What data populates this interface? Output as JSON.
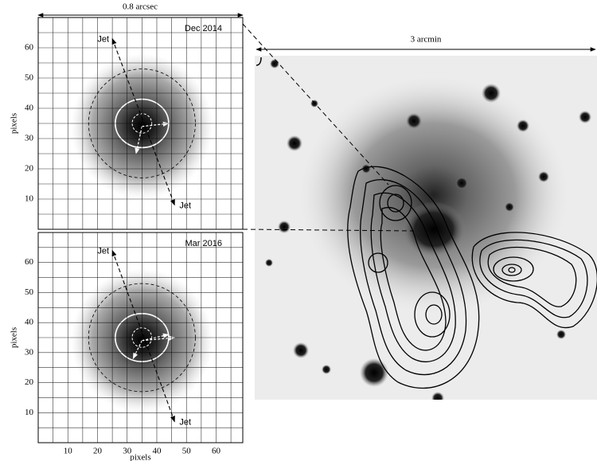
{
  "figure": {
    "left_scale": "0.8 arcsec",
    "right_scale": "3 arcmin"
  },
  "chart_data": [
    {
      "type": "image",
      "epoch": "Dec 2014",
      "ylabel": "pixels",
      "jet_labels": [
        "Jet",
        "Jet"
      ],
      "xlim": [
        0,
        69
      ],
      "ylim": [
        0,
        70
      ],
      "yticks": [
        10,
        20,
        30,
        40,
        50,
        60
      ]
    },
    {
      "type": "image",
      "epoch": "Mar 2016",
      "xlabel": "pixels",
      "ylabel": "pixels",
      "jet_labels": [
        "Jet",
        "Jet"
      ],
      "xlim": [
        0,
        69
      ],
      "ylim": [
        0,
        70
      ],
      "xticks": [
        10,
        20,
        30,
        40,
        50,
        60
      ],
      "yticks": [
        10,
        20,
        30,
        40,
        50,
        60
      ]
    }
  ]
}
